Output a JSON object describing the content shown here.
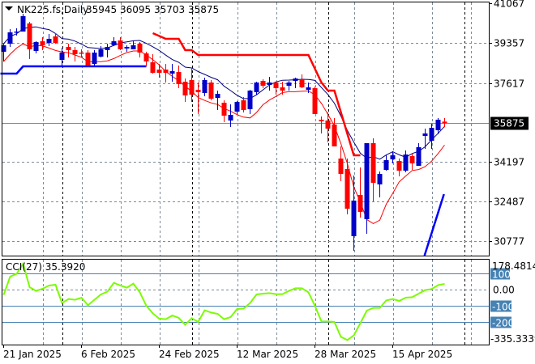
{
  "header": {
    "menu_icon": "triangle-down-icon",
    "symbol": "NK225.fs,Daily",
    "ohlc": "35945 36095 35703 35875"
  },
  "price_axis": {
    "labels": [
      "41067",
      "39357",
      "37617",
      "34197",
      "32487",
      "30777"
    ],
    "current_price": "35875"
  },
  "cci_axis": {
    "max_label": "178.4814",
    "zero_label": "0.00",
    "min_label": "-335.3339",
    "level_labels": [
      "100",
      "-100",
      "-200"
    ],
    "level_color": "#4682B4"
  },
  "cci_header": "CCI(27) 35.3920",
  "date_labels": [
    "21 Jan 2025",
    "6 Feb 2025",
    "24 Feb 2025",
    "12 Mar 2025",
    "28 Mar 2025",
    "15 Apr 2025"
  ],
  "colors": {
    "bull": "#0000C8",
    "bear": "#FF0000",
    "cci": "#7CFC00",
    "ma_upper": "#000080",
    "ma_lower": "#FF0000"
  },
  "chart_data": [
    {
      "type": "candlestick",
      "title": "NK225.fs,Daily",
      "ylim": [
        30147,
        41067
      ],
      "yticks": [
        41067,
        39357,
        37617,
        34197,
        32487,
        30777
      ],
      "date_label_indices": [
        0,
        12,
        24,
        36,
        48,
        60
      ],
      "month_separator_indices": [
        9,
        29,
        50,
        71
      ],
      "current_price": 35875,
      "candles_ohlc": [
        [
          38967,
          39317,
          38547,
          39247
        ],
        [
          39317,
          39947,
          39177,
          39807
        ],
        [
          39807,
          39982,
          39667,
          39842
        ],
        [
          39842,
          40612,
          39842,
          40507
        ],
        [
          40192,
          40262,
          38652,
          39072
        ],
        [
          39002,
          39422,
          38897,
          39387
        ],
        [
          39422,
          39597,
          39037,
          39247
        ],
        [
          39352,
          39737,
          39212,
          39527
        ],
        [
          39632,
          39772,
          39317,
          39352
        ],
        [
          38617,
          39142,
          38337,
          38932
        ],
        [
          39177,
          39317,
          38722,
          39037
        ],
        [
          39037,
          39177,
          38547,
          38862
        ],
        [
          38932,
          39072,
          38722,
          38897
        ],
        [
          38932,
          39037,
          38337,
          38372
        ],
        [
          38442,
          39037,
          38372,
          38932
        ],
        [
          38757,
          39212,
          38722,
          39072
        ],
        [
          39037,
          39317,
          38722,
          39177
        ],
        [
          39247,
          39597,
          39212,
          39422
        ],
        [
          39457,
          39597,
          39037,
          39072
        ],
        [
          39107,
          39247,
          38967,
          39177
        ],
        [
          39072,
          39457,
          39072,
          39247
        ],
        [
          39317,
          39387,
          38722,
          38932
        ],
        [
          38897,
          38967,
          38337,
          38547
        ],
        [
          38512,
          38862,
          38022,
          38057
        ],
        [
          38197,
          38442,
          37847,
          38057
        ],
        [
          38197,
          38442,
          37637,
          38057
        ],
        [
          38022,
          38442,
          37672,
          38127
        ],
        [
          38092,
          38372,
          37392,
          37567
        ],
        [
          37672,
          37812,
          36797,
          37077
        ],
        [
          37742,
          38267,
          36797,
          37112
        ],
        [
          37322,
          37637,
          36272,
          37217
        ],
        [
          37182,
          37847,
          37042,
          37742
        ],
        [
          37637,
          37742,
          36867,
          36937
        ],
        [
          36972,
          37287,
          36447,
          37147
        ],
        [
          36762,
          36867,
          35922,
          36202
        ],
        [
          35992,
          36692,
          35712,
          36237
        ],
        [
          36377,
          36832,
          36272,
          36797
        ],
        [
          36867,
          37007,
          36342,
          36447
        ],
        [
          36482,
          37322,
          36272,
          37287
        ],
        [
          37217,
          37672,
          37112,
          37637
        ],
        [
          37707,
          37777,
          37392,
          37497
        ],
        [
          37532,
          37882,
          37287,
          37637
        ],
        [
          37637,
          37672,
          37112,
          37392
        ],
        [
          37427,
          37672,
          37112,
          37287
        ],
        [
          37497,
          37707,
          37287,
          37637
        ],
        [
          37707,
          37847,
          37392,
          37812
        ],
        [
          37777,
          37987,
          37392,
          37427
        ],
        [
          37322,
          37637,
          37182,
          37427
        ],
        [
          37392,
          37462,
          36272,
          36272
        ],
        [
          36027,
          36167,
          35432,
          35957
        ],
        [
          35992,
          36342,
          35047,
          35642
        ],
        [
          35817,
          36097,
          34872,
          34872
        ],
        [
          34347,
          34872,
          33367,
          33682
        ],
        [
          33892,
          34347,
          31932,
          32177
        ],
        [
          30987,
          33612,
          30357,
          32527
        ],
        [
          32772,
          33962,
          31792,
          32037
        ],
        [
          31722,
          35012,
          31092,
          35012
        ],
        [
          35012,
          35222,
          32492,
          33297
        ],
        [
          33227,
          33787,
          32667,
          33682
        ],
        [
          33857,
          34522,
          33822,
          34277
        ],
        [
          34312,
          34662,
          34137,
          34487
        ],
        [
          34242,
          34347,
          33577,
          33822
        ],
        [
          33822,
          34697,
          33752,
          34522
        ],
        [
          34452,
          34592,
          33857,
          34137
        ],
        [
          34032,
          35012,
          34032,
          34837
        ],
        [
          35327,
          35642,
          34767,
          35432
        ],
        [
          35117,
          35852,
          34767,
          35677
        ],
        [
          35572,
          36097,
          35397,
          36027
        ],
        [
          35945,
          36095,
          35703,
          35875
        ]
      ],
      "stop_line": [
        [
          23,
          39772
        ],
        [
          25,
          39527
        ],
        [
          27,
          39527
        ],
        [
          28,
          39037
        ],
        [
          29,
          39037
        ],
        [
          30,
          38827
        ],
        [
          47,
          38827
        ],
        [
          49,
          37637
        ],
        [
          50,
          37287
        ],
        [
          51,
          37287
        ],
        [
          54,
          34487
        ],
        [
          55,
          34487
        ]
      ],
      "support_line_left": [
        [
          -0.5,
          38022
        ],
        [
          2,
          38022
        ],
        [
          3,
          38337
        ],
        [
          22,
          38337
        ]
      ],
      "support_line_right": [
        [
          64.9,
          30147
        ],
        [
          67.9,
          32807
        ]
      ]
    },
    {
      "type": "line",
      "title": "CCI(27) 35.3920",
      "ylim": [
        -335.3339,
        178.4814
      ],
      "levels": [
        100,
        0,
        -100,
        -200
      ],
      "values": [
        -33,
        80,
        97,
        160,
        15,
        -8,
        5,
        25,
        30,
        -83,
        -58,
        -63,
        -50,
        -97,
        -63,
        -30,
        -13,
        42,
        25,
        12,
        37,
        -17,
        -100,
        -147,
        -180,
        -183,
        -160,
        -175,
        -217,
        -177,
        -200,
        -128,
        -142,
        -150,
        -183,
        -170,
        -120,
        -117,
        -83,
        -30,
        -25,
        -22,
        -28,
        -28,
        -8,
        8,
        8,
        -17,
        -100,
        -197,
        -197,
        -200,
        -292,
        -312,
        -283,
        -208,
        -130,
        -113,
        -113,
        -67,
        -58,
        -70,
        -50,
        -47,
        -25,
        -3,
        3,
        28,
        35.392
      ]
    }
  ]
}
